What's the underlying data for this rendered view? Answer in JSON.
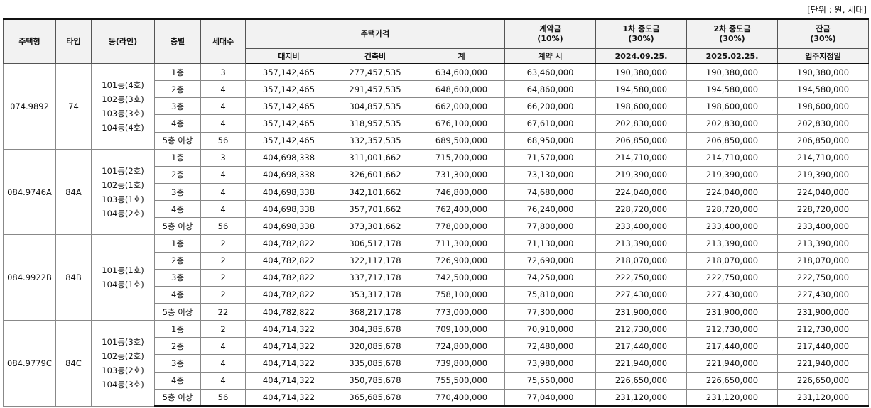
{
  "unit": "[단위 : 원, 세대]",
  "header": {
    "row1": [
      [
        "주택형"
      ],
      [
        "타입"
      ],
      [
        "동(라인)"
      ],
      [
        "층별"
      ],
      [
        "세대수"
      ],
      [
        "주택가격"
      ],
      [
        "계약금",
        "(10%)"
      ],
      [
        "1차 중도금",
        "(30%)"
      ],
      [
        "2차 중도금",
        "(30%)"
      ],
      [
        "잔금",
        "(30%)"
      ]
    ],
    "row2": [
      "대지비",
      "건축비",
      "계",
      "계약 시",
      "2024.09.25.",
      "2025.02.25.",
      "입주지정일"
    ]
  },
  "groups": [
    {
      "model": "074.9892",
      "type": "74",
      "dongs": [
        "101동(4호)",
        "102동(3호)",
        "103동(3호)",
        "104동(4호)"
      ],
      "rows": [
        [
          "1층",
          "3",
          "357,142,465",
          "277,457,535",
          "634,600,000",
          "63,460,000",
          "190,380,000",
          "190,380,000",
          "190,380,000"
        ],
        [
          "2층",
          "4",
          "357,142,465",
          "291,457,535",
          "648,600,000",
          "64,860,000",
          "194,580,000",
          "194,580,000",
          "194,580,000"
        ],
        [
          "3층",
          "4",
          "357,142,465",
          "304,857,535",
          "662,000,000",
          "66,200,000",
          "198,600,000",
          "198,600,000",
          "198,600,000"
        ],
        [
          "4층",
          "4",
          "357,142,465",
          "318,957,535",
          "676,100,000",
          "67,610,000",
          "202,830,000",
          "202,830,000",
          "202,830,000"
        ],
        [
          "5층 이상",
          "56",
          "357,142,465",
          "332,357,535",
          "689,500,000",
          "68,950,000",
          "206,850,000",
          "206,850,000",
          "206,850,000"
        ]
      ]
    },
    {
      "model": "084.9746A",
      "type": "84A",
      "dongs": [
        "101동(2호)",
        "102동(1호)",
        "103동(1호)",
        "104동(2호)"
      ],
      "rows": [
        [
          "1층",
          "3",
          "404,698,338",
          "311,001,662",
          "715,700,000",
          "71,570,000",
          "214,710,000",
          "214,710,000",
          "214,710,000"
        ],
        [
          "2층",
          "4",
          "404,698,338",
          "326,601,662",
          "731,300,000",
          "73,130,000",
          "219,390,000",
          "219,390,000",
          "219,390,000"
        ],
        [
          "3층",
          "4",
          "404,698,338",
          "342,101,662",
          "746,800,000",
          "74,680,000",
          "224,040,000",
          "224,040,000",
          "224,040,000"
        ],
        [
          "4층",
          "4",
          "404,698,338",
          "357,701,662",
          "762,400,000",
          "76,240,000",
          "228,720,000",
          "228,720,000",
          "228,720,000"
        ],
        [
          "5층 이상",
          "56",
          "404,698,338",
          "373,301,662",
          "778,000,000",
          "77,800,000",
          "233,400,000",
          "233,400,000",
          "233,400,000"
        ]
      ]
    },
    {
      "model": "084.9922B",
      "type": "84B",
      "dongs": [
        "101동(1호)",
        "104동(1호)"
      ],
      "rows": [
        [
          "1층",
          "2",
          "404,782,822",
          "306,517,178",
          "711,300,000",
          "71,130,000",
          "213,390,000",
          "213,390,000",
          "213,390,000"
        ],
        [
          "2층",
          "2",
          "404,782,822",
          "322,117,178",
          "726,900,000",
          "72,690,000",
          "218,070,000",
          "218,070,000",
          "218,070,000"
        ],
        [
          "3층",
          "2",
          "404,782,822",
          "337,717,178",
          "742,500,000",
          "74,250,000",
          "222,750,000",
          "222,750,000",
          "222,750,000"
        ],
        [
          "4층",
          "2",
          "404,782,822",
          "353,317,178",
          "758,100,000",
          "75,810,000",
          "227,430,000",
          "227,430,000",
          "227,430,000"
        ],
        [
          "5층 이상",
          "22",
          "404,782,822",
          "368,217,178",
          "773,000,000",
          "77,300,000",
          "231,900,000",
          "231,900,000",
          "231,900,000"
        ]
      ]
    },
    {
      "model": "084.9779C",
      "type": "84C",
      "dongs": [
        "101동(3호)",
        "102동(2호)",
        "103동(2호)",
        "104동(3호)"
      ],
      "rows": [
        [
          "1층",
          "2",
          "404,714,322",
          "304,385,678",
          "709,100,000",
          "70,910,000",
          "212,730,000",
          "212,730,000",
          "212,730,000"
        ],
        [
          "2층",
          "4",
          "404,714,322",
          "320,085,678",
          "724,800,000",
          "72,480,000",
          "217,440,000",
          "217,440,000",
          "217,440,000"
        ],
        [
          "3층",
          "4",
          "404,714,322",
          "335,085,678",
          "739,800,000",
          "73,980,000",
          "221,940,000",
          "221,940,000",
          "221,940,000"
        ],
        [
          "4층",
          "4",
          "404,714,322",
          "350,785,678",
          "755,500,000",
          "75,550,000",
          "226,650,000",
          "226,650,000",
          "226,650,000"
        ],
        [
          "5층 이상",
          "56",
          "404,714,322",
          "365,685,678",
          "770,400,000",
          "77,040,000",
          "231,120,000",
          "231,120,000",
          "231,120,000"
        ]
      ]
    }
  ]
}
